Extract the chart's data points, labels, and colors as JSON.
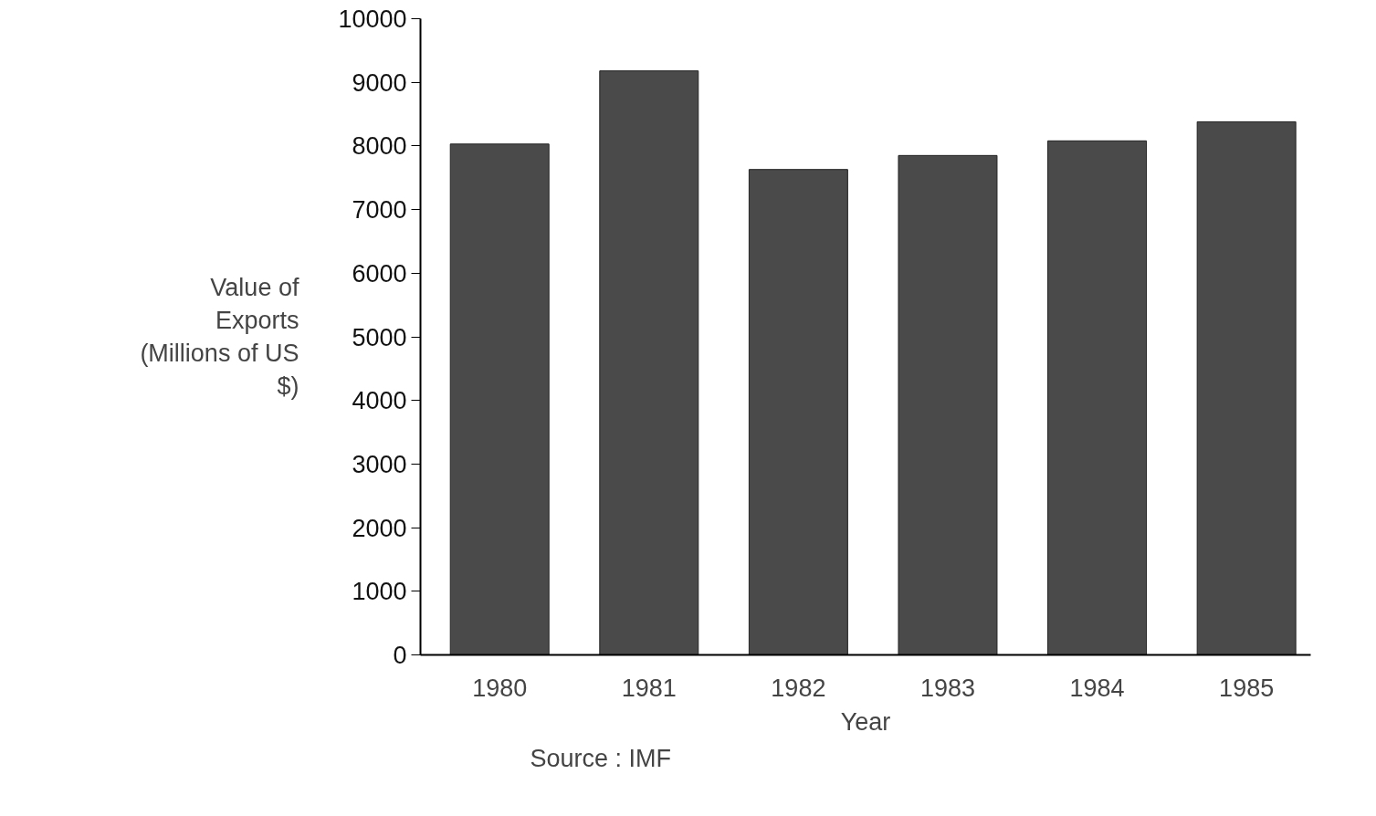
{
  "chart_data": {
    "type": "bar",
    "xlabel": "Year",
    "ylabel": "Value of\nExports\n(Millions of US\n$)",
    "categories": [
      "1980",
      "1981",
      "1982",
      "1983",
      "1984",
      "1985"
    ],
    "values": [
      8030,
      9180,
      7630,
      7850,
      8080,
      8380
    ],
    "color": "#4a4a4a",
    "ylim": [
      0,
      10000
    ],
    "yticks": [
      0,
      1000,
      2000,
      3000,
      4000,
      5000,
      6000,
      7000,
      8000,
      9000,
      10000
    ],
    "grid": false,
    "annotations": [
      "Source : IMF"
    ]
  }
}
